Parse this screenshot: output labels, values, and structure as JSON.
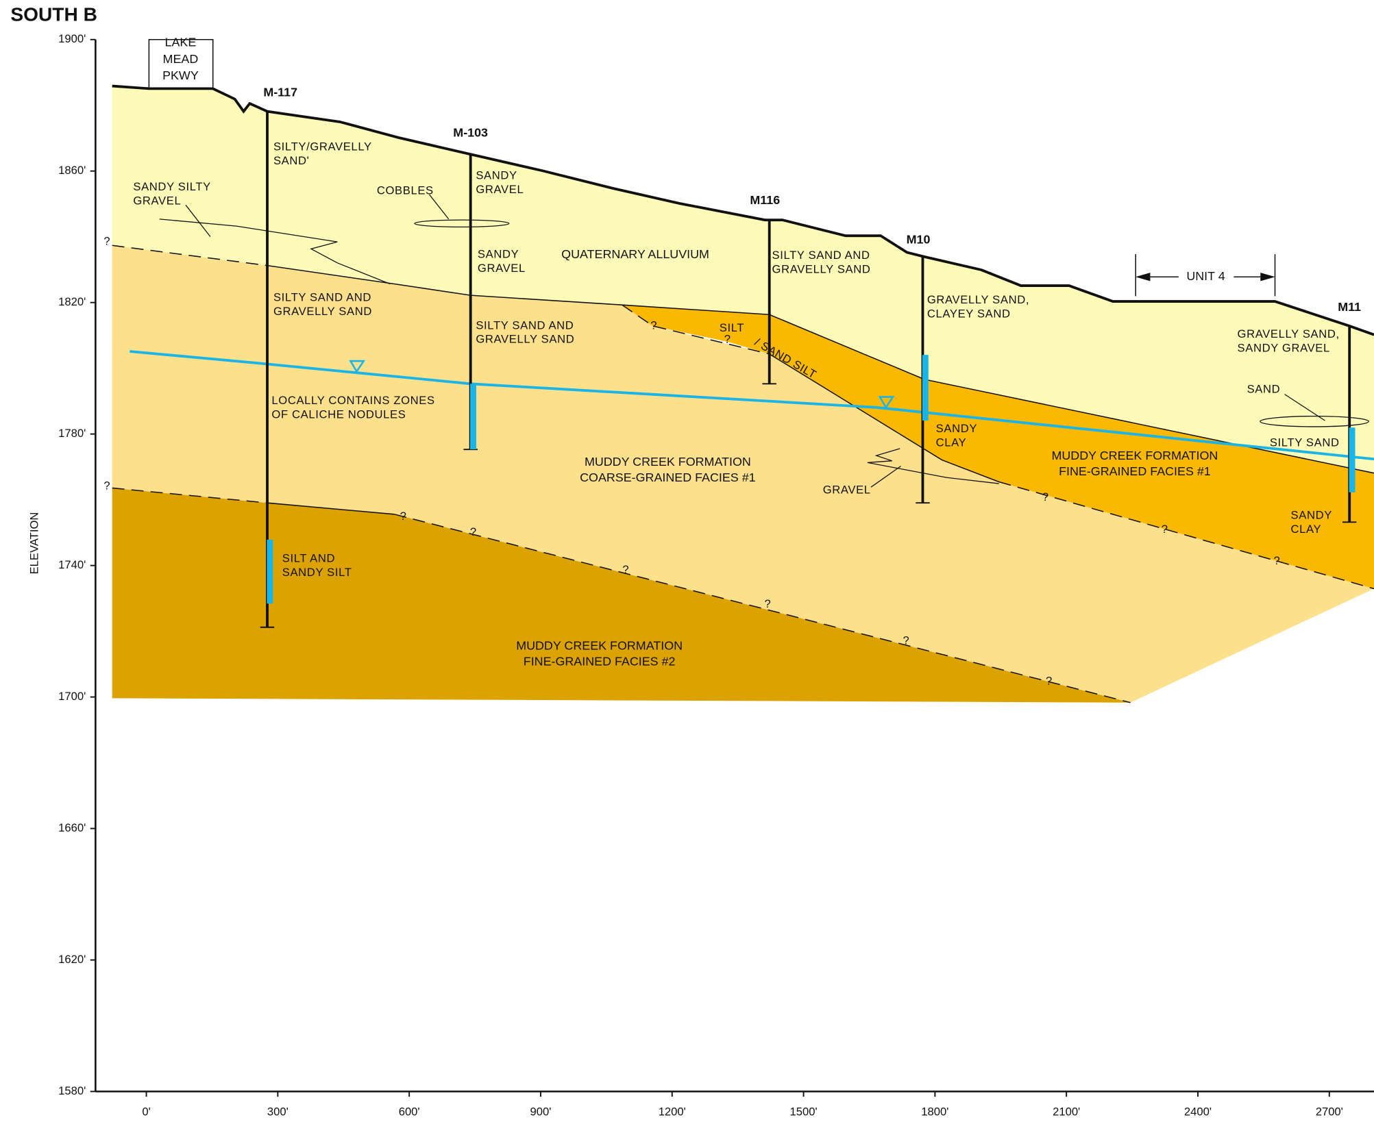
{
  "title": "SOUTH B",
  "y_axis_label": "ELEVATION",
  "yticks": [
    {
      "value": 1900,
      "label": "1900'"
    },
    {
      "value": 1860,
      "label": "1860'"
    },
    {
      "value": 1820,
      "label": "1820'"
    },
    {
      "value": 1780,
      "label": "1780'"
    },
    {
      "value": 1740,
      "label": "1740'"
    },
    {
      "value": 1700,
      "label": "1700'"
    },
    {
      "value": 1660,
      "label": "1660'"
    },
    {
      "value": 1620,
      "label": "1620'"
    },
    {
      "value": 1580,
      "label": "1580'"
    }
  ],
  "xticks": [
    {
      "value": 0,
      "label": "0'"
    },
    {
      "value": 300,
      "label": "300'"
    },
    {
      "value": 600,
      "label": "600'"
    },
    {
      "value": 900,
      "label": "900'"
    },
    {
      "value": 1200,
      "label": "1200'"
    },
    {
      "value": 1500,
      "label": "1500'"
    },
    {
      "value": 1800,
      "label": "1800'"
    },
    {
      "value": 2100,
      "label": "2100'"
    },
    {
      "value": 2400,
      "label": "2400'"
    },
    {
      "value": 2700,
      "label": "2700'"
    }
  ],
  "road": [
    "LAKE",
    "MEAD",
    "PKWY"
  ],
  "wells": [
    "M-117",
    "M-103",
    "M116",
    "M10",
    "M11"
  ],
  "unit": "UNIT 4",
  "uncertain_contact": "?",
  "labels": [
    [
      "SILTY/GRAVELLY",
      "SAND'"
    ],
    [
      "SANDY SILTY",
      "GRAVEL"
    ],
    [
      "COBBLES"
    ],
    [
      "SANDY",
      "GRAVEL"
    ],
    [
      "SANDY",
      "GRAVEL"
    ],
    [
      "SILTY SAND AND",
      "GRAVELLY SAND"
    ],
    [
      "GRAVELLY SAND,",
      "CLAYEY SAND"
    ],
    [
      "GRAVELLY SAND,",
      "SANDY GRAVEL"
    ],
    [
      "SILTY SAND AND",
      "GRAVELLY SAND"
    ],
    [
      "SILTY SAND AND",
      "GRAVELLY SAND"
    ],
    [
      "SILT"
    ],
    [
      "/ SAND SILT"
    ],
    [
      "SAND"
    ],
    [
      "SILTY SAND"
    ],
    [
      "LOCALLY CONTAINS ZONES",
      "OF CALICHE NODULES"
    ],
    [
      "SANDY",
      "CLAY"
    ],
    [
      "GRAVEL"
    ],
    [
      "SANDY",
      "CLAY"
    ],
    [
      "SILT AND",
      "SANDY SILT"
    ]
  ],
  "formations": [
    [
      "QUATERNARY ALLUVIUM"
    ],
    [
      "MUDDY CREEK FORMATION",
      "COARSE-GRAINED FACIES #1"
    ],
    [
      "MUDDY CREEK FORMATION",
      "FINE-GRAINED FACIES #1"
    ],
    [
      "MUDDY CREEK FORMATION",
      "FINE-GRAINED FACIES #2"
    ]
  ]
}
